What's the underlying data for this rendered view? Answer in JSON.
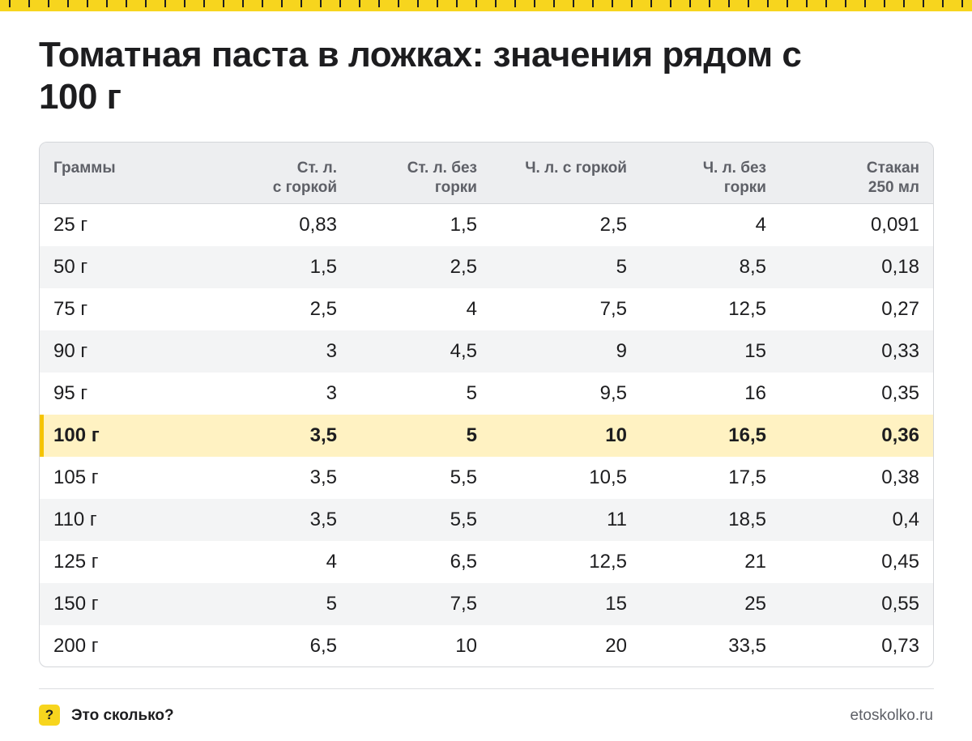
{
  "title": "Томатная паста в ложках: значения рядом с 100 г",
  "table": {
    "headers": [
      "Граммы",
      "Ст. л.\nс горкой",
      "Ст. л. без\nгорки",
      "Ч. л. с горкой",
      "Ч. л. без\nгорки",
      "Стакан\n250 мл"
    ],
    "rows": [
      [
        "25 г",
        "0,83",
        "1,5",
        "2,5",
        "4",
        "0,091"
      ],
      [
        "50 г",
        "1,5",
        "2,5",
        "5",
        "8,5",
        "0,18"
      ],
      [
        "75 г",
        "2,5",
        "4",
        "7,5",
        "12,5",
        "0,27"
      ],
      [
        "90 г",
        "3",
        "4,5",
        "9",
        "15",
        "0,33"
      ],
      [
        "95 г",
        "3",
        "5",
        "9,5",
        "16",
        "0,35"
      ],
      [
        "100 г",
        "3,5",
        "5",
        "10",
        "16,5",
        "0,36"
      ],
      [
        "105 г",
        "3,5",
        "5,5",
        "10,5",
        "17,5",
        "0,38"
      ],
      [
        "110 г",
        "3,5",
        "5,5",
        "11",
        "18,5",
        "0,4"
      ],
      [
        "125 г",
        "4",
        "6,5",
        "12,5",
        "21",
        "0,45"
      ],
      [
        "150 г",
        "5",
        "7,5",
        "15",
        "25",
        "0,55"
      ],
      [
        "200 г",
        "6,5",
        "10",
        "20",
        "33,5",
        "0,73"
      ]
    ],
    "highlighted_row": 5
  },
  "footer": {
    "badge_icon": "?",
    "brand": "Это сколько?",
    "site": "etoskolko.ru"
  },
  "colors": {
    "accent": "#f7d51e",
    "highlight_row": "#fff2c2",
    "highlight_bar": "#f5c400",
    "header_bg": "#edeef0",
    "stripe_bg": "#f3f4f5"
  }
}
